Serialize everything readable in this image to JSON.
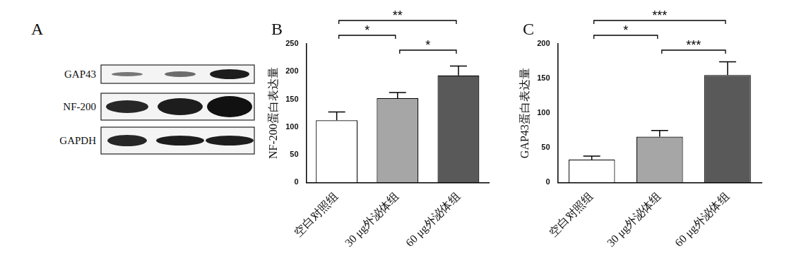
{
  "blot": {
    "panel": "A",
    "rows": [
      "GAP43",
      "NF-200",
      "GAPDH"
    ]
  },
  "chart_data": [
    {
      "type": "bar",
      "panel": "B",
      "y_label": "NF-200蛋白表达量",
      "categories": [
        "空白对照组",
        "30 μg外泌体组",
        "60 μg外泌体组"
      ],
      "values": [
        112,
        152,
        193
      ],
      "errors": [
        15,
        10,
        17
      ],
      "colors": [
        "#ffffff",
        "#a6a6a6",
        "#595959"
      ],
      "ylim": [
        0,
        250
      ],
      "yticks": [
        0,
        50,
        100,
        150,
        200,
        250
      ],
      "grid": false,
      "annotations": [
        {
          "between": [
            "空白对照组",
            "60 μg外泌体组"
          ],
          "label": "**"
        },
        {
          "between": [
            "空白对照组",
            "30 μg外泌体组"
          ],
          "label": "*"
        },
        {
          "between": [
            "30 μg外泌体组",
            "60 μg外泌体组"
          ],
          "label": "*"
        }
      ]
    },
    {
      "type": "bar",
      "panel": "C",
      "y_label": "GAP43蛋白表达量",
      "categories": [
        "空白对照组",
        "30 μg外泌体组",
        "60 μg外泌体组"
      ],
      "values": [
        33,
        66,
        155
      ],
      "errors": [
        5,
        9,
        19
      ],
      "colors": [
        "#ffffff",
        "#a6a6a6",
        "#595959"
      ],
      "ylim": [
        0,
        200
      ],
      "yticks": [
        0,
        50,
        100,
        150,
        200
      ],
      "grid": false,
      "annotations": [
        {
          "between": [
            "空白对照组",
            "60 μg外泌体组"
          ],
          "label": "***"
        },
        {
          "between": [
            "空白对照组",
            "30 μg外泌体组"
          ],
          "label": "*"
        },
        {
          "between": [
            "30 μg外泌体组",
            "60 μg外泌体组"
          ],
          "label": "***"
        }
      ]
    }
  ]
}
